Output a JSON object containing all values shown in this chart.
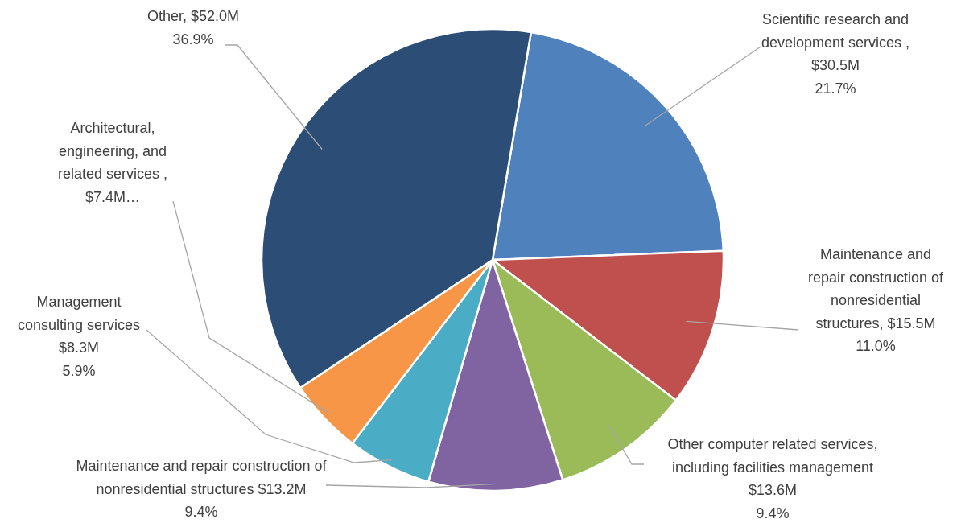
{
  "chart_data": {
    "type": "pie",
    "categories": [
      "Scientific research and development services",
      "Maintenance and repair construction of nonresidential structures",
      "Other computer related services, including facilities management",
      "Maintenance and repair construction of nonresidential structures",
      "Management consulting services",
      "Architectural, engineering, and related services",
      "Other"
    ],
    "values": [
      30.5,
      15.5,
      13.6,
      13.2,
      8.3,
      7.4,
      52.0
    ],
    "colors": [
      "#4f81bd",
      "#c0504d",
      "#9bbb59",
      "#8064a2",
      "#4bacc6",
      "#f79646",
      "#2c4d75"
    ],
    "value_labels": [
      ", $30.5M",
      "$15.5M",
      "$13.6M",
      "$13.2M",
      "$8.3M",
      ", $7.4M…",
      "$52.0M"
    ],
    "annotations": [
      "21.7%",
      "11.0%",
      "9.4%",
      "9.4%",
      "5.9%",
      "36.9%"
    ]
  }
}
